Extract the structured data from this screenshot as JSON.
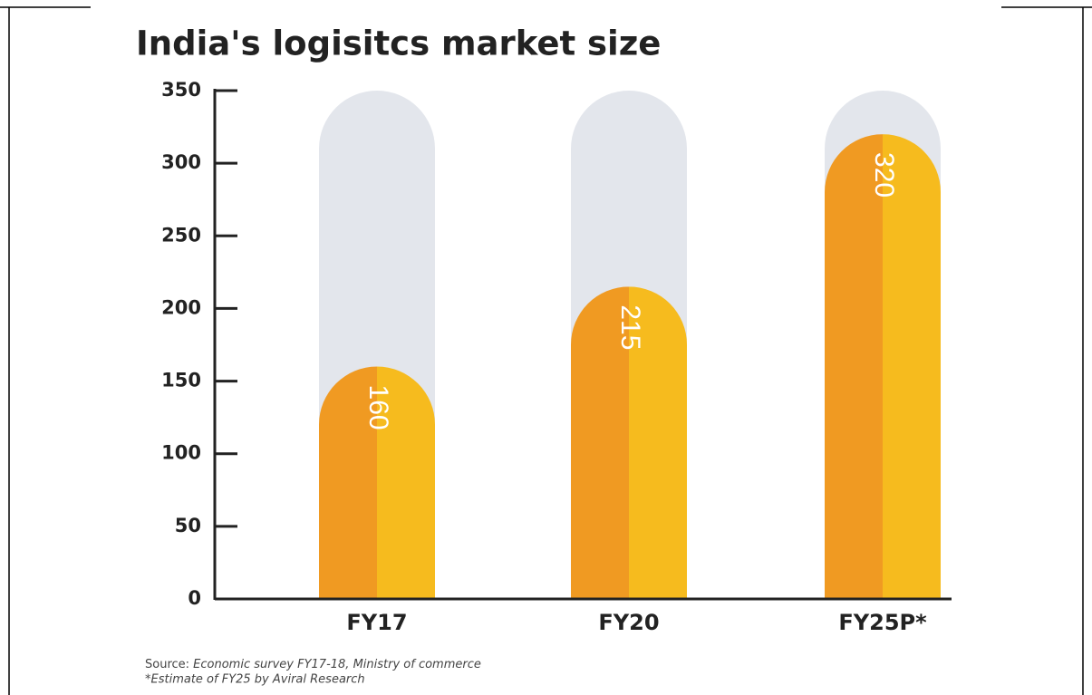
{
  "chart_data": {
    "type": "bar",
    "title": "India's logisitcs market size",
    "categories": [
      "FY17",
      "FY20",
      "FY25P*"
    ],
    "values": [
      160,
      215,
      320
    ],
    "colors": [
      "#f09a22",
      "#f6bb1e"
    ],
    "track_color": "#e3e6ec",
    "ylim": [
      0,
      350
    ],
    "yticks": [
      0,
      50,
      100,
      150,
      200,
      250,
      300,
      350
    ],
    "source_label": "Source:",
    "source": "Economic survey FY17-18, Ministry of commerce",
    "footnote": "*Estimate of FY25 by Aviral Research"
  }
}
